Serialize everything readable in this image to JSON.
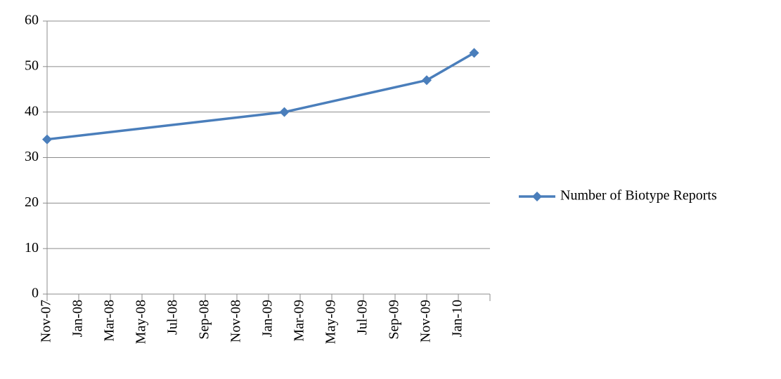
{
  "chart_data": {
    "type": "line",
    "x": [
      "Nov-07",
      "Feb-09",
      "Nov-09",
      "Feb-10"
    ],
    "series": [
      {
        "name": "Number of Biotype Reports",
        "color": "#4a7ebb",
        "values": [
          34,
          40,
          47,
          53
        ]
      }
    ],
    "xlim": [
      "Nov-07",
      "Mar-10"
    ],
    "xticks": [
      "Nov-07",
      "Jan-08",
      "Mar-08",
      "May-08",
      "Jul-08",
      "Sep-08",
      "Nov-08",
      "Jan-09",
      "Mar-09",
      "May-09",
      "Jul-09",
      "Sep-09",
      "Nov-09",
      "Jan-10"
    ],
    "ylim": [
      0,
      60
    ],
    "yticks": [
      0,
      10,
      20,
      30,
      40,
      50,
      60
    ],
    "grid": true,
    "legend": "right"
  }
}
